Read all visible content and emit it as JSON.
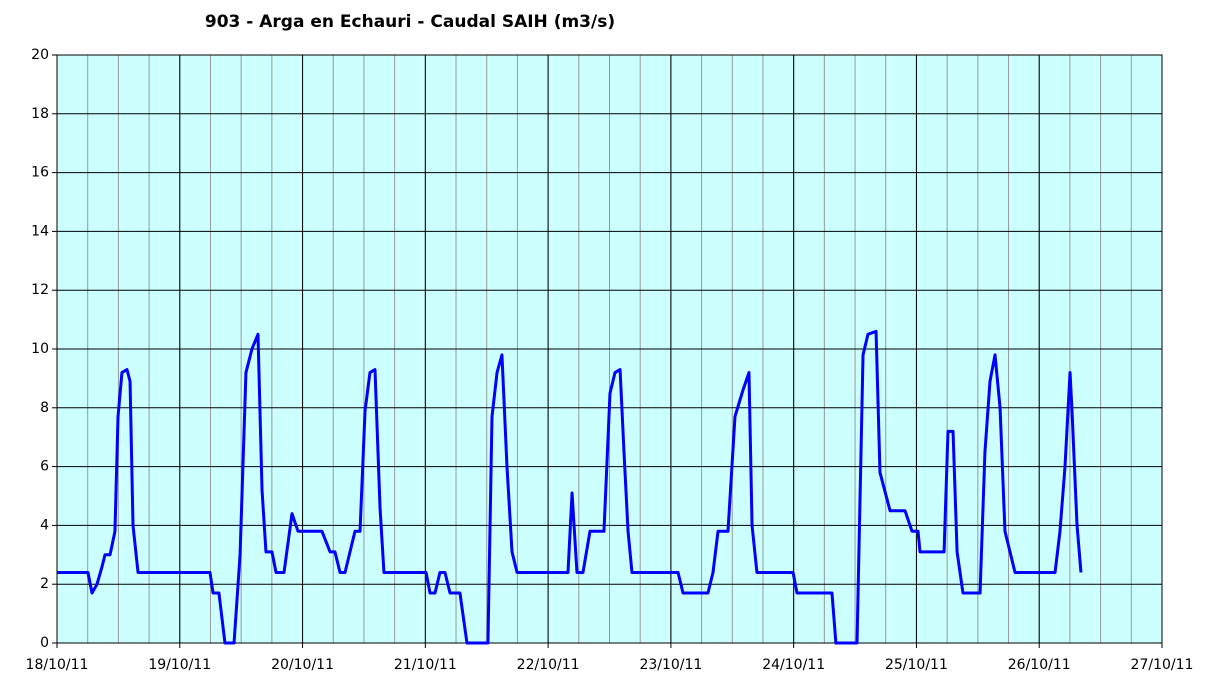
{
  "chart_data": {
    "type": "line",
    "title": "903 - Arga en Echauri - Caudal SAIH (m3/s)",
    "x": [
      18.0,
      18.252,
      18.285,
      18.326,
      18.367,
      18.391,
      18.432,
      18.472,
      18.497,
      18.529,
      18.57,
      18.595,
      18.619,
      18.66,
      19.246,
      19.271,
      19.319,
      19.368,
      19.442,
      19.491,
      19.539,
      19.588,
      19.637,
      19.67,
      19.702,
      19.751,
      19.784,
      19.849,
      19.914,
      19.963,
      20.158,
      20.224,
      20.264,
      20.305,
      20.346,
      20.427,
      20.468,
      20.509,
      20.549,
      20.59,
      20.631,
      20.663,
      21.006,
      21.038,
      21.079,
      21.119,
      21.16,
      21.201,
      21.282,
      21.339,
      21.51,
      21.543,
      21.584,
      21.624,
      21.665,
      21.706,
      21.747,
      22.162,
      22.195,
      22.235,
      22.284,
      22.341,
      22.455,
      22.504,
      22.545,
      22.586,
      22.618,
      22.651,
      22.683,
      23.058,
      23.099,
      23.302,
      23.343,
      23.384,
      23.465,
      23.522,
      23.587,
      23.636,
      23.661,
      23.701,
      23.995,
      24.027,
      24.312,
      24.344,
      24.516,
      24.565,
      24.605,
      24.671,
      24.703,
      24.785,
      24.907,
      24.964,
      25.013,
      25.029,
      25.225,
      25.257,
      25.298,
      25.331,
      25.379,
      25.518,
      25.558,
      25.599,
      25.64,
      25.681,
      25.721,
      25.803,
      26.129,
      26.169,
      26.21,
      26.251,
      26.267,
      26.308,
      26.34
    ],
    "series": [
      {
        "color": "#0000ff",
        "values": [
          2.4,
          2.4,
          1.7,
          2.0,
          2.6,
          3.0,
          3.0,
          3.8,
          7.7,
          9.2,
          9.3,
          8.9,
          4.0,
          2.4,
          2.4,
          1.7,
          1.7,
          0,
          0,
          3.0,
          9.2,
          10.0,
          10.5,
          5.2,
          3.1,
          3.1,
          2.4,
          2.4,
          4.4,
          3.8,
          3.8,
          3.1,
          3.1,
          2.4,
          2.4,
          3.8,
          3.8,
          7.9,
          9.2,
          9.3,
          4.6,
          2.4,
          2.4,
          1.7,
          1.7,
          2.4,
          2.4,
          1.7,
          1.7,
          0,
          0,
          7.7,
          9.2,
          9.8,
          6.0,
          3.1,
          2.4,
          2.4,
          5.1,
          2.4,
          2.4,
          3.8,
          3.8,
          8.5,
          9.2,
          9.3,
          6.5,
          3.8,
          2.4,
          2.4,
          1.7,
          1.7,
          2.4,
          3.8,
          3.8,
          7.7,
          8.6,
          9.2,
          4.0,
          2.4,
          2.4,
          1.7,
          1.7,
          0,
          0,
          9.8,
          10.5,
          10.6,
          5.8,
          4.5,
          4.5,
          3.8,
          3.8,
          3.1,
          3.1,
          7.2,
          7.2,
          3.1,
          1.7,
          1.7,
          6.5,
          8.9,
          9.8,
          8.0,
          3.8,
          2.4,
          2.4,
          3.8,
          6.0,
          9.2,
          7.9,
          4.0,
          2.4
        ]
      }
    ],
    "xlim": [
      18,
      27
    ],
    "xticks": [
      {
        "value": 18,
        "label": "18/10/11"
      },
      {
        "value": 19,
        "label": "19/10/11"
      },
      {
        "value": 20,
        "label": "20/10/11"
      },
      {
        "value": 21,
        "label": "21/10/11"
      },
      {
        "value": 22,
        "label": "22/10/11"
      },
      {
        "value": 23,
        "label": "23/10/11"
      },
      {
        "value": 24,
        "label": "24/10/11"
      },
      {
        "value": 25,
        "label": "25/10/11"
      },
      {
        "value": 26,
        "label": "26/10/11"
      },
      {
        "value": 27,
        "label": "27/10/11"
      }
    ],
    "ylim": [
      0,
      20
    ],
    "yticks": [
      0,
      2,
      4,
      6,
      8,
      10,
      12,
      14,
      16,
      18,
      20
    ],
    "grid": true,
    "minor_grid": 0.25,
    "background": "#ccffff"
  }
}
